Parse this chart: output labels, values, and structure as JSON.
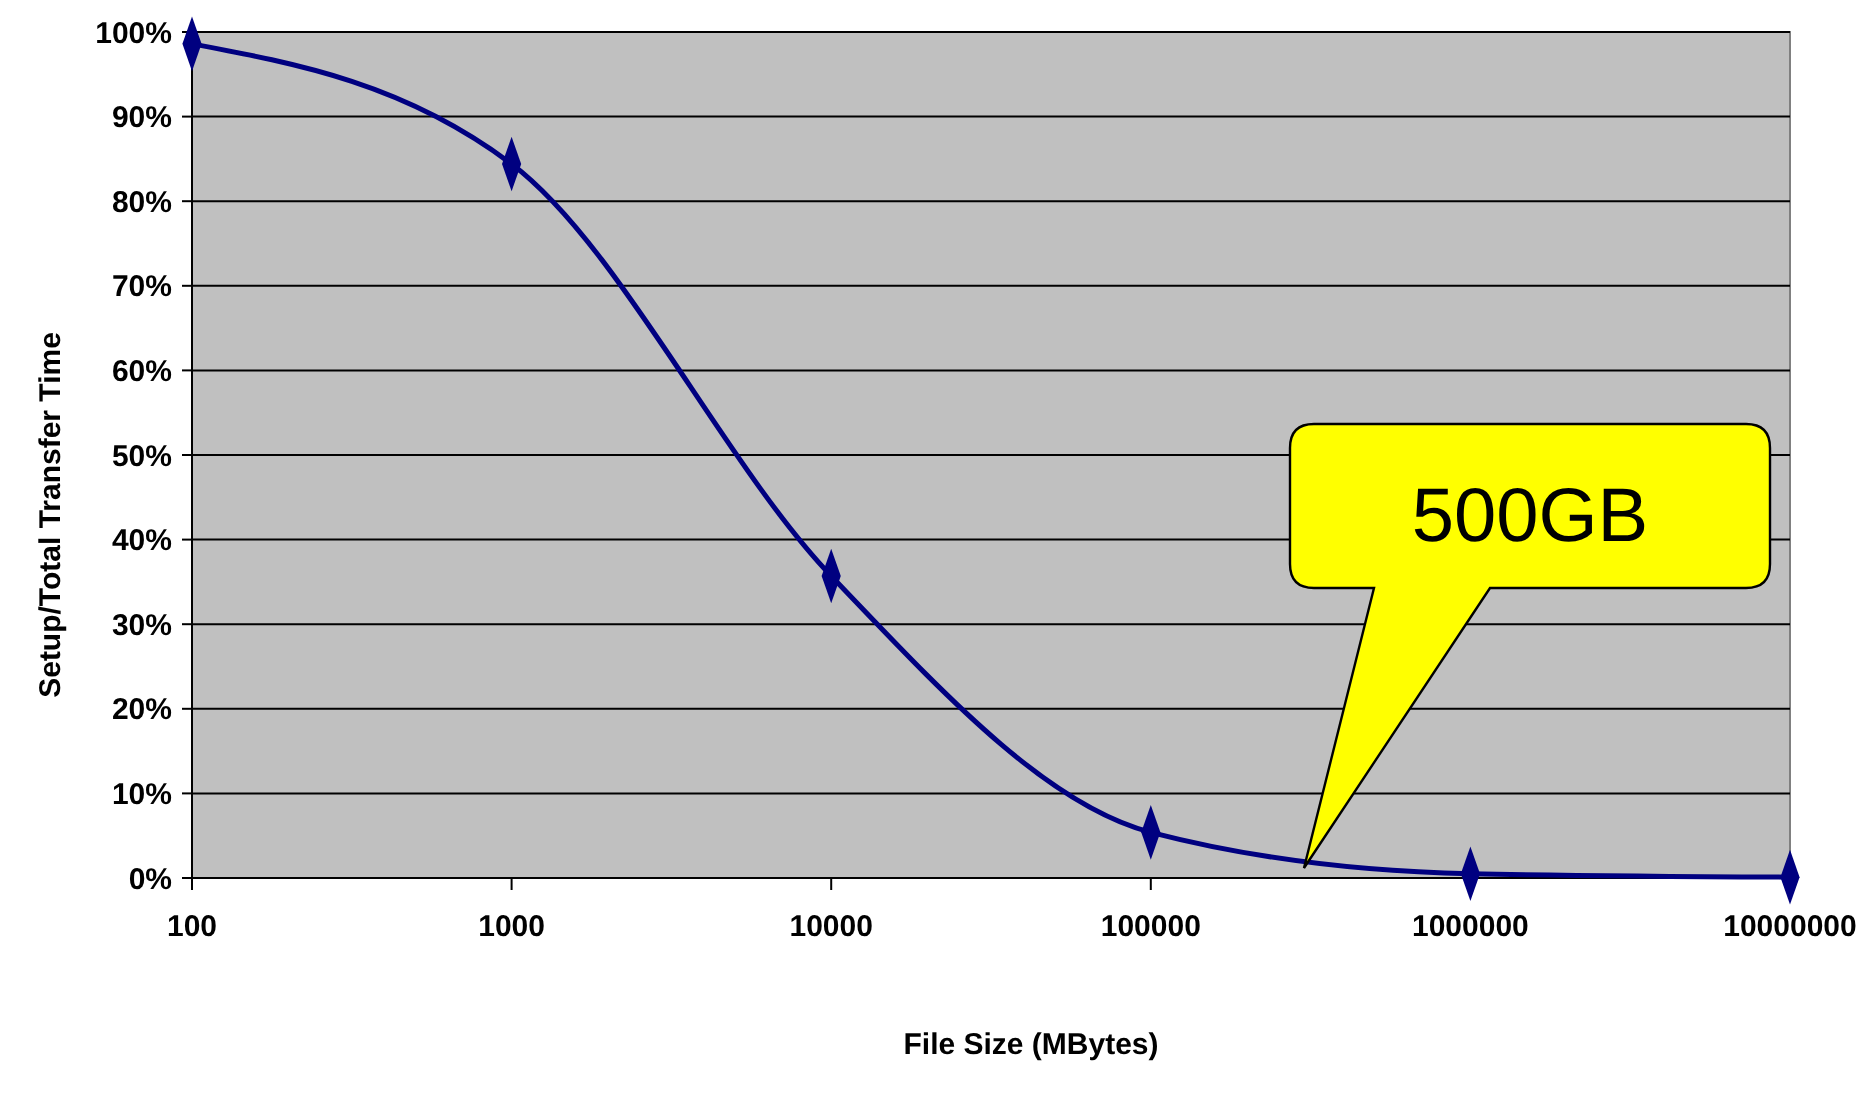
{
  "chart_data": {
    "type": "line",
    "xlabel": "File Size (MBytes)",
    "ylabel": "Setup/Total Transfer Time",
    "log": "x",
    "x": [
      100,
      1000,
      10000,
      100000,
      1000000,
      10000000
    ],
    "series": [
      {
        "color": "#000080",
        "values": [
          98.6,
          84.4,
          35.7,
          5.4,
          0.5,
          0.1
        ]
      }
    ],
    "xlim": [
      100,
      10000000
    ],
    "xticks": [
      100,
      1000,
      10000,
      100000,
      1000000,
      10000000
    ],
    "ylim": [
      0,
      100
    ],
    "yticks": [
      {
        "value": 0,
        "label": "0%"
      },
      {
        "value": 10,
        "label": "10%"
      },
      {
        "value": 20,
        "label": "20%"
      },
      {
        "value": 30,
        "label": "30%"
      },
      {
        "value": 40,
        "label": "40%"
      },
      {
        "value": 50,
        "label": "50%"
      },
      {
        "value": 60,
        "label": "60%"
      },
      {
        "value": 70,
        "label": "70%"
      },
      {
        "value": 80,
        "label": "80%"
      },
      {
        "value": 90,
        "label": "90%"
      },
      {
        "value": 100,
        "label": "100%"
      }
    ],
    "grid": "y",
    "marker": "diamond",
    "line_style": "solid",
    "annotations": [
      "500GB"
    ]
  }
}
